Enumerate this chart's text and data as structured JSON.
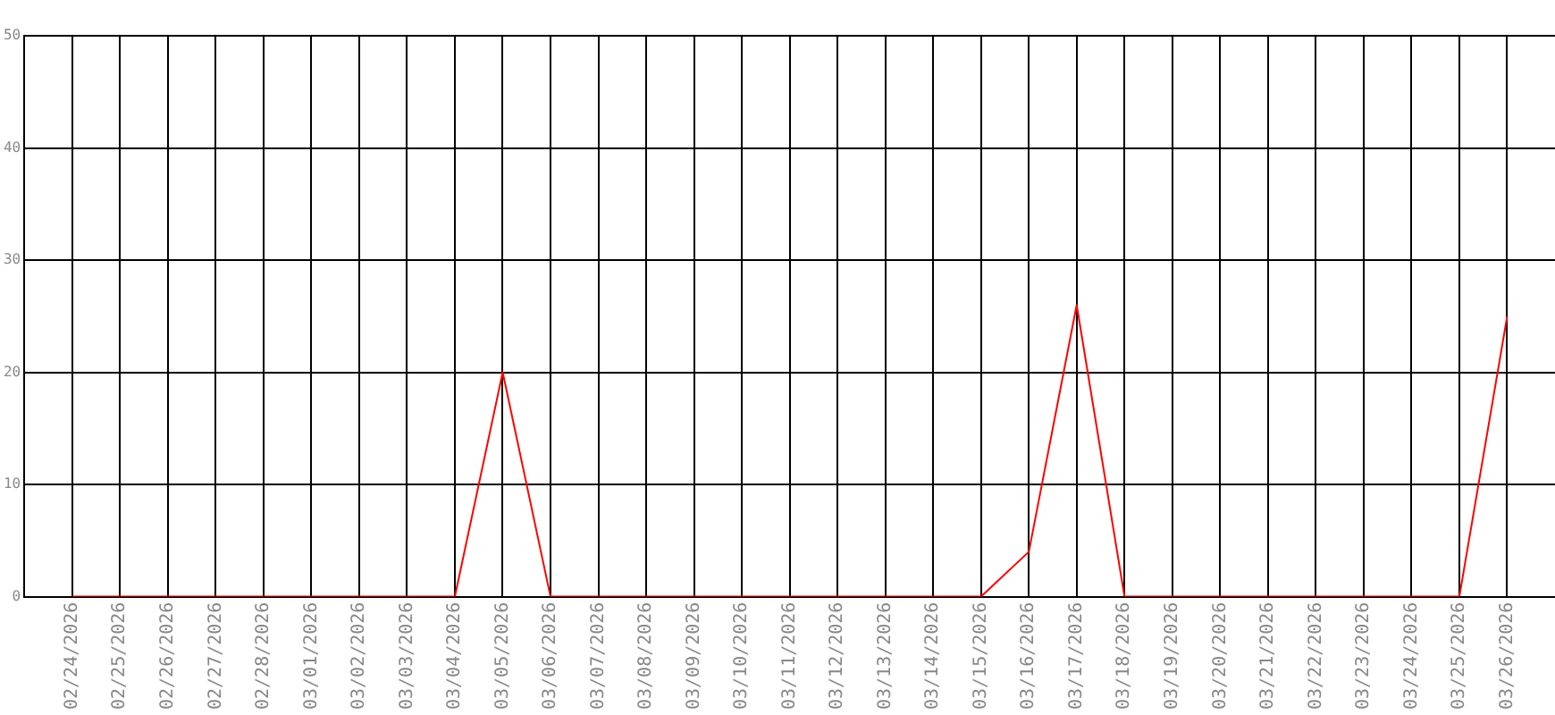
{
  "chart_data": {
    "type": "line",
    "categories": [
      "02/24/2026",
      "02/25/2026",
      "02/26/2026",
      "02/27/2026",
      "02/28/2026",
      "03/01/2026",
      "03/02/2026",
      "03/03/2026",
      "03/04/2026",
      "03/05/2026",
      "03/06/2026",
      "03/07/2026",
      "03/08/2026",
      "03/09/2026",
      "03/10/2026",
      "03/11/2026",
      "03/12/2026",
      "03/13/2026",
      "03/14/2026",
      "03/15/2026",
      "03/16/2026",
      "03/17/2026",
      "03/18/2026",
      "03/19/2026",
      "03/20/2026",
      "03/21/2026",
      "03/22/2026",
      "03/23/2026",
      "03/24/2026",
      "03/25/2026",
      "03/26/2026"
    ],
    "series": [
      {
        "color": "#ff0000",
        "values": [
          0,
          0,
          0,
          0,
          0,
          0,
          0,
          0,
          0,
          20,
          0,
          0,
          0,
          0,
          0,
          0,
          0,
          0,
          0,
          0,
          4,
          26,
          0,
          0,
          0,
          0,
          0,
          0,
          0,
          0,
          25
        ]
      }
    ],
    "ylim": [
      0,
      50
    ],
    "yticks": [
      0,
      10,
      20,
      30,
      40,
      50
    ],
    "grid": true,
    "legend": false,
    "marker": "none",
    "line_style": "solid"
  }
}
